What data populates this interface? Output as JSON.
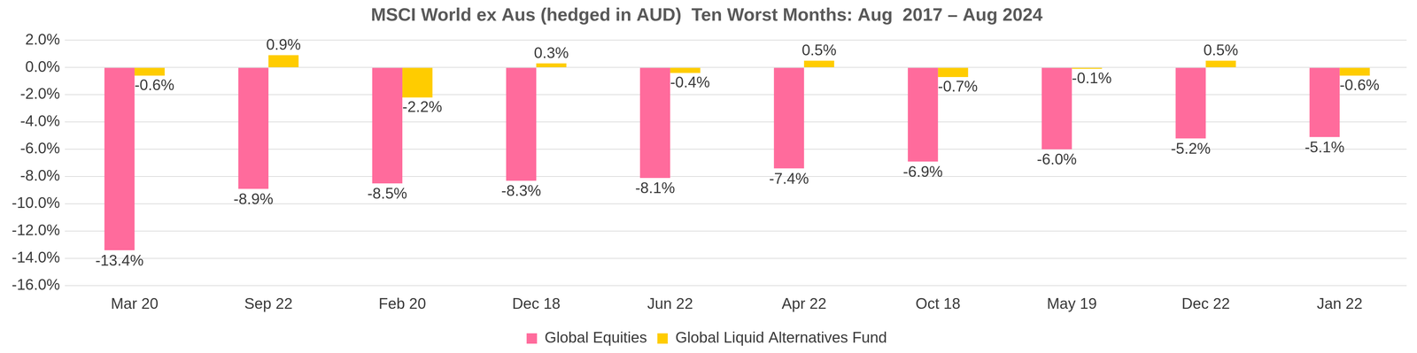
{
  "chart_data": {
    "type": "bar",
    "title": "MSCI World ex Aus (hedged in AUD)  Ten Worst Months: Aug  2017 – Aug 2024",
    "categories": [
      "Mar 20",
      "Sep 22",
      "Feb 20",
      "Dec 18",
      "Jun 22",
      "Apr 22",
      "Oct 18",
      "May 19",
      "Dec 22",
      "Jan 22"
    ],
    "series": [
      {
        "name": "Global Equities",
        "color": "#FF6B9C",
        "values": [
          -13.4,
          -8.9,
          -8.5,
          -8.3,
          -8.1,
          -7.4,
          -6.9,
          -6.0,
          -5.2,
          -5.1
        ],
        "value_labels": [
          "-13.4%",
          "-8.9%",
          "-8.5%",
          "-8.3%",
          "-8.1%",
          "-7.4%",
          "-6.9%",
          "-6.0%",
          "-5.2%",
          "-5.1%"
        ]
      },
      {
        "name": "Global Liquid Alternatives Fund",
        "color": "#FFCC00",
        "values": [
          -0.6,
          0.9,
          -2.2,
          0.3,
          -0.4,
          0.5,
          -0.7,
          -0.1,
          0.5,
          -0.6
        ],
        "value_labels": [
          "-0.6%",
          "0.9%",
          "-2.2%",
          "0.3%",
          "-0.4%",
          "0.5%",
          "-0.7%",
          "-0.1%",
          "0.5%",
          "-0.6%"
        ]
      }
    ],
    "ylim": [
      -16,
      2
    ],
    "yticks": [
      {
        "value": -16,
        "label": "-16.0%"
      },
      {
        "value": -14,
        "label": "-14.0%"
      },
      {
        "value": -12,
        "label": "-12.0%"
      },
      {
        "value": -10,
        "label": "-10.0%"
      },
      {
        "value": -8,
        "label": "-8.0%"
      },
      {
        "value": -6,
        "label": "-6.0%"
      },
      {
        "value": -4,
        "label": "-4.0%"
      },
      {
        "value": -2,
        "label": "-2.0%"
      },
      {
        "value": 0,
        "label": "0.0%"
      },
      {
        "value": 2,
        "label": "2.0%"
      }
    ],
    "grid": true,
    "legend": "bottom",
    "data_labels": true
  }
}
